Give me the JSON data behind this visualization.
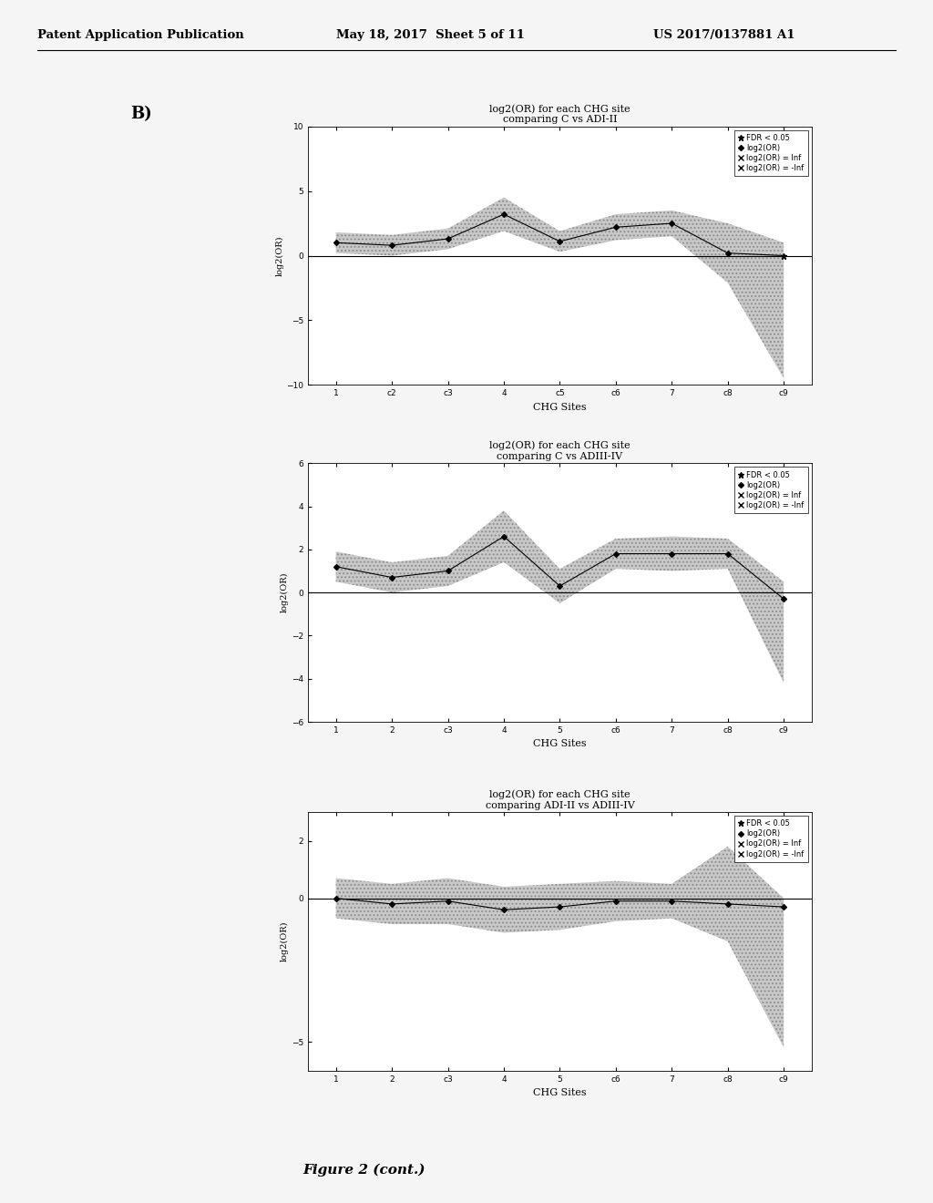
{
  "header_left": "Patent Application Publication",
  "header_mid": "May 18, 2017  Sheet 5 of 11",
  "header_right": "US 2017/0137881 A1",
  "panel_label": "B)",
  "figure_caption": "Figure 2 (cont.)",
  "background_color": "#f5f5f5",
  "plots": [
    {
      "title": "log2(OR) for each CHG site\ncomparing C vs ADI-II",
      "xlabel": "CHG Sites",
      "ylabel": "log2(OR)",
      "ylim": [
        -10,
        10
      ],
      "yticks": [
        -10,
        -5,
        0,
        5,
        10
      ],
      "x_labels": [
        "1",
        "c2",
        "c3",
        "4",
        "c5",
        "c6",
        "7",
        "c8",
        "c9"
      ],
      "x_values": [
        1,
        2,
        3,
        4,
        5,
        6,
        7,
        8,
        9
      ],
      "main_line": [
        1.0,
        0.8,
        1.3,
        3.2,
        1.1,
        2.2,
        2.5,
        0.2,
        0.0
      ],
      "upper_band": [
        1.8,
        1.6,
        2.1,
        4.5,
        1.9,
        3.2,
        3.5,
        2.5,
        1.0
      ],
      "lower_band": [
        0.2,
        0.0,
        0.5,
        1.9,
        0.3,
        1.2,
        1.5,
        -2.1,
        -9.5
      ],
      "significant_points": [
        8
      ],
      "legend_entries": [
        "FDR < 0.05",
        "log2(OR)",
        "log2(OR) = Inf",
        "log2(OR) = -Inf"
      ]
    },
    {
      "title": "log2(OR) for each CHG site\ncomparing C vs ADIII-IV",
      "xlabel": "CHG Sites",
      "ylabel": "log2(OR)",
      "ylim": [
        -6,
        6
      ],
      "yticks": [
        -6,
        -4,
        -2,
        0,
        2,
        4,
        6
      ],
      "x_labels": [
        "1",
        "2",
        "c3",
        "4",
        "5",
        "c6",
        "7",
        "c8",
        "c9"
      ],
      "x_values": [
        1,
        2,
        3,
        4,
        5,
        6,
        7,
        8,
        9
      ],
      "main_line": [
        1.2,
        0.7,
        1.0,
        2.6,
        0.3,
        1.8,
        1.8,
        1.8,
        -0.3
      ],
      "upper_band": [
        1.9,
        1.4,
        1.7,
        3.8,
        1.1,
        2.5,
        2.6,
        2.5,
        0.5
      ],
      "lower_band": [
        0.5,
        0.0,
        0.3,
        1.4,
        -0.5,
        1.1,
        1.0,
        1.1,
        -4.2
      ],
      "significant_points": [],
      "legend_entries": [
        "FDR < 0.05",
        "log2(OR)",
        "log2(OR) = Inf",
        "log2(OR) = -Inf"
      ]
    },
    {
      "title": "log2(OR) for each CHG site\ncomparing ADI-II vs ADIII-IV",
      "xlabel": "CHG Sites",
      "ylabel": "log2(OR)",
      "ylim": [
        -6,
        3
      ],
      "yticks": [
        -5,
        0,
        2
      ],
      "x_labels": [
        "1",
        "2",
        "c3",
        "4",
        "5",
        "c6",
        "7",
        "c8",
        "c9"
      ],
      "x_values": [
        1,
        2,
        3,
        4,
        5,
        6,
        7,
        8,
        9
      ],
      "main_line": [
        0.0,
        -0.2,
        -0.1,
        -0.4,
        -0.3,
        -0.1,
        -0.1,
        -0.2,
        -0.3
      ],
      "upper_band": [
        0.7,
        0.5,
        0.7,
        0.4,
        0.5,
        0.6,
        0.5,
        1.8,
        0.0
      ],
      "lower_band": [
        -0.7,
        -0.9,
        -0.9,
        -1.2,
        -1.1,
        -0.8,
        -0.7,
        -1.5,
        -5.2
      ],
      "significant_points": [],
      "legend_entries": [
        "FDR < 0.05",
        "log2(OR)",
        "log2(OR) = Inf",
        "log2(OR) = -Inf"
      ]
    }
  ]
}
